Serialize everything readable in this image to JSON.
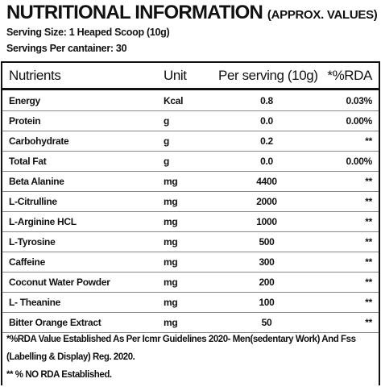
{
  "header": {
    "title": "NUTRITIONAL INFORMATION",
    "subtitle": "(APPROX. VALUES)",
    "serving_size": "Serving Size: 1 Heaped Scoop (10g)",
    "servings_per_container": "Servings Per cantainer: 30"
  },
  "table": {
    "columns": [
      "Nutrients",
      "Unit",
      "Per serving (10g)",
      "*%RDA"
    ],
    "rows": [
      [
        "Energy",
        "Kcal",
        "0.8",
        "0.03%"
      ],
      [
        "Protein",
        "g",
        "0.0",
        "0.00%"
      ],
      [
        "Carbohydrate",
        "g",
        "0.2",
        "**"
      ],
      [
        "Total Fat",
        "g",
        "0.0",
        "0.00%"
      ],
      [
        "Beta Alanine",
        "mg",
        "4400",
        "**"
      ],
      [
        "L-Citrulline",
        "mg",
        "2000",
        "**"
      ],
      [
        "L-Arginine HCL",
        "mg",
        "1000",
        "**"
      ],
      [
        "L-Tyrosine",
        "mg",
        "500",
        "**"
      ],
      [
        "Caffeine",
        "mg",
        "300",
        "**"
      ],
      [
        "Coconut Water Powder",
        "mg",
        "200",
        "**"
      ],
      [
        "L- Theanine",
        "mg",
        "100",
        "**"
      ],
      [
        "Bitter Orange Extract",
        "mg",
        "50",
        "**"
      ]
    ]
  },
  "footnotes": [
    "*%RDA Value Established As Per Icmr Guidelines 2020- Men(sedentary Work) And Fss",
    "(Labelling & Display) Reg. 2020.",
    "** % NO RDA Established."
  ]
}
